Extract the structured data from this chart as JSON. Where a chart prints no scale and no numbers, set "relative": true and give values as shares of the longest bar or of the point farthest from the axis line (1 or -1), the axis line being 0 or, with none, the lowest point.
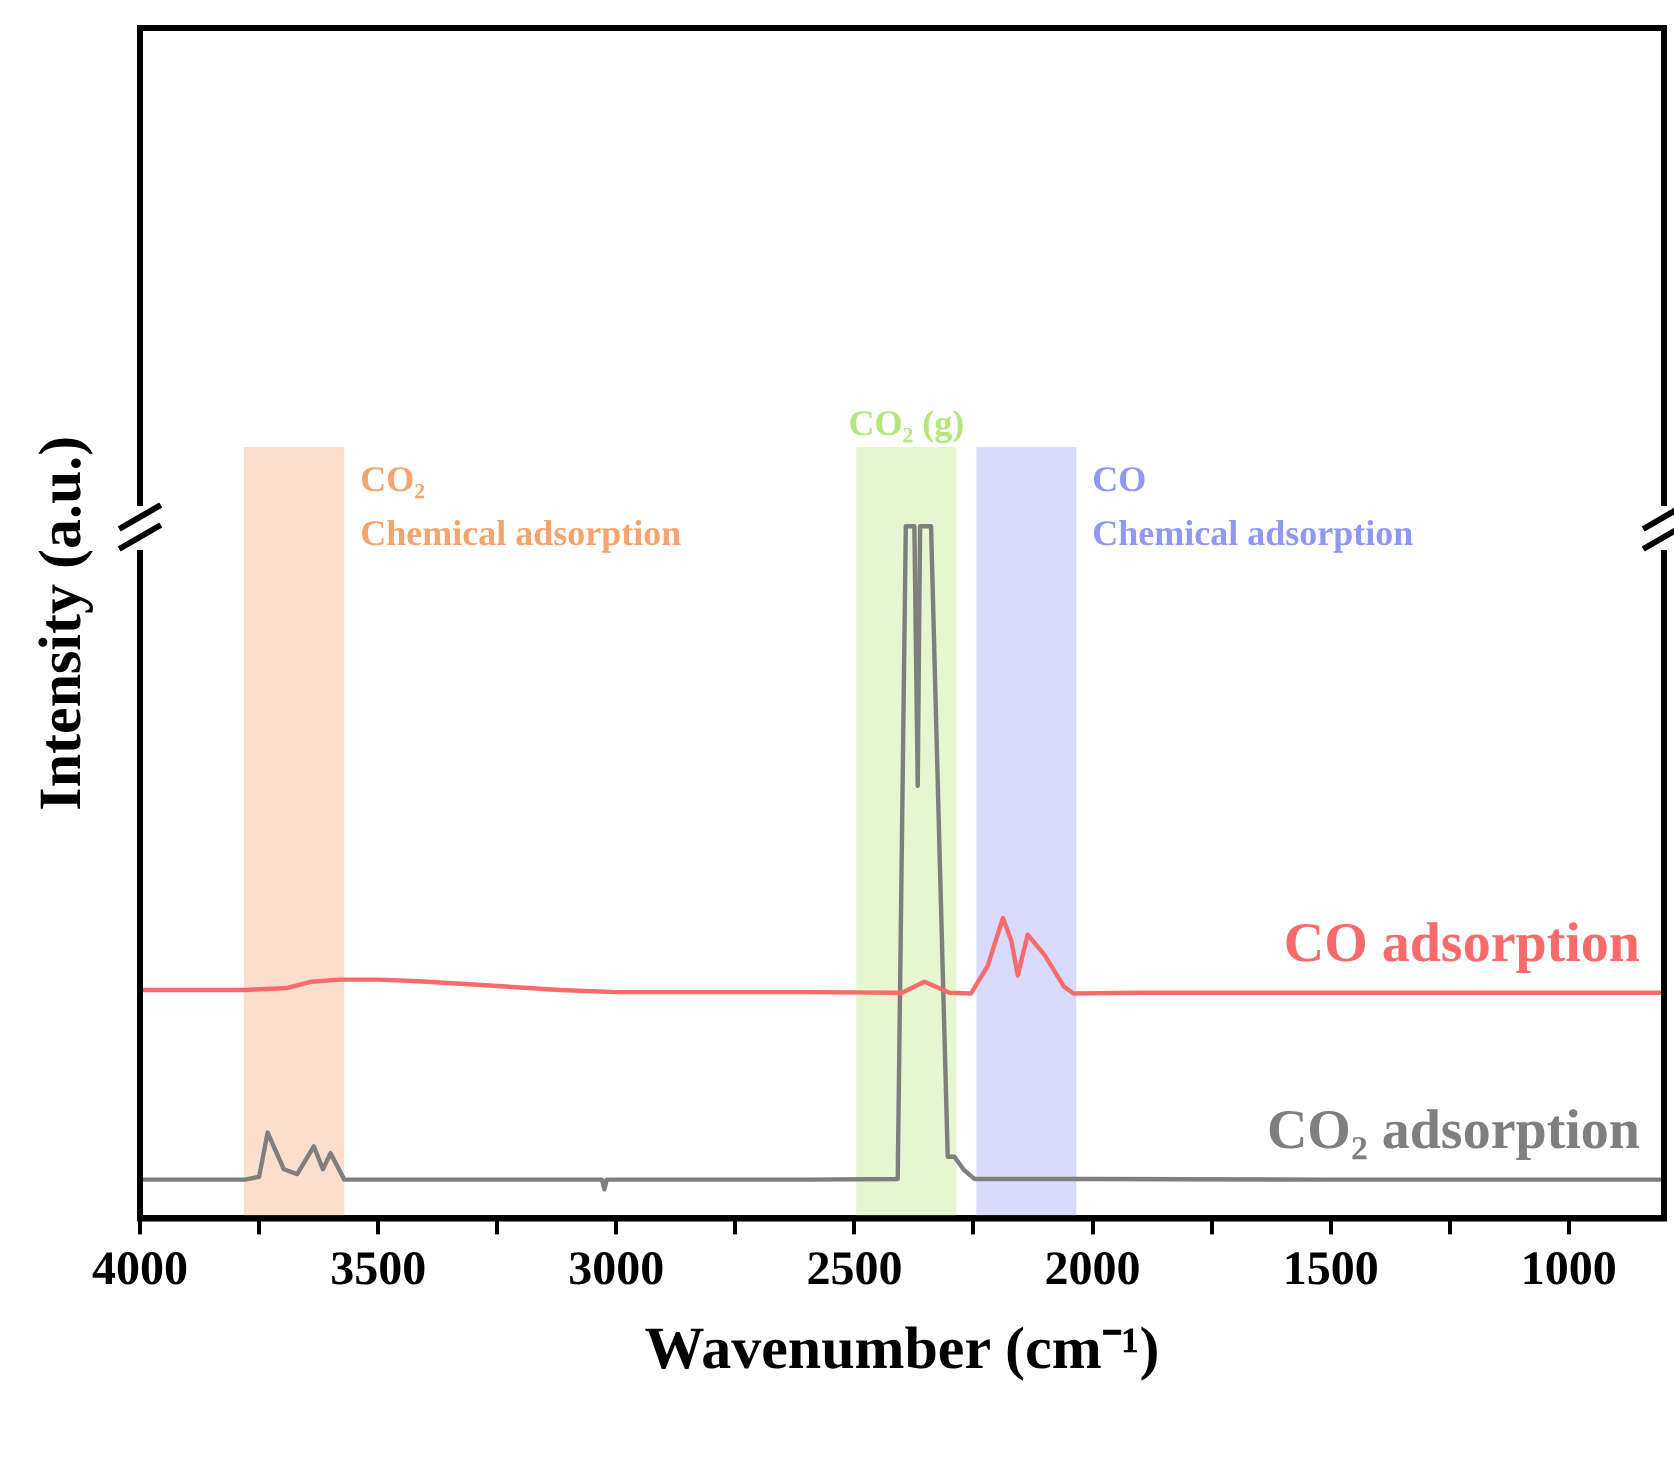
{
  "chart_data": {
    "type": "line",
    "relative": true,
    "xlabel": "Wavenumber (cm⁻¹)",
    "ylabel": "Intensity (a.u.)",
    "xlim": [
      4000,
      800
    ],
    "xticks": [
      4000,
      {
        "value": 3750,
        "label": null
      },
      3500,
      {
        "value": 3250,
        "label": null
      },
      3000,
      {
        "value": 2750,
        "label": null
      },
      2500,
      {
        "value": 2250,
        "label": null
      },
      2000,
      {
        "value": 1750,
        "label": null
      },
      1500,
      {
        "value": 1250,
        "label": null
      },
      1000
    ],
    "grid": false,
    "legend": false,
    "marker": "none",
    "line_style": "solid",
    "bands": [
      {
        "axis": "x",
        "from": 3782,
        "to": 3571,
        "label": "CO₂\nChemical adsorption",
        "color": "#f4a46c"
      },
      {
        "axis": "x",
        "from": 2496,
        "to": 2286,
        "label": "CO₂ (g)",
        "color": "#b5e67a"
      },
      {
        "axis": "x",
        "from": 2244,
        "to": 2034,
        "label": "CO\nChemical adsorption",
        "color": "#8f99f5"
      }
    ],
    "series": [
      {
        "name": "CO adsorption",
        "color": "#f96a6a",
        "x": [
          4000,
          3780,
          3690,
          3640,
          3580,
          3500,
          3425,
          3300,
          3118,
          3000,
          2800,
          2600,
          2400,
          2353,
          2300,
          2255,
          2220,
          2188,
          2170,
          2157,
          2136,
          2100,
          2060,
          2040,
          1900,
          1500,
          1000,
          800
        ],
        "values": [
          0.33,
          0.33,
          0.333,
          0.342,
          0.345,
          0.345,
          0.343,
          0.338,
          0.33,
          0.327,
          0.327,
          0.327,
          0.326,
          0.342,
          0.326,
          0.325,
          0.365,
          0.434,
          0.4,
          0.351,
          0.41,
          0.38,
          0.335,
          0.325,
          0.326,
          0.326,
          0.326,
          0.326
        ]
      },
      {
        "name": "CO₂ adsorption",
        "color": "#7f7f7f",
        "x": [
          4000,
          3780,
          3750,
          3732,
          3698,
          3670,
          3635,
          3616,
          3600,
          3571,
          3400,
          3030,
          3025,
          3020,
          2800,
          2600,
          2409,
          2392,
          2374,
          2367,
          2362,
          2339,
          2320,
          2304,
          2290,
          2270,
          2248,
          2000,
          1500,
          1000,
          800
        ],
        "values": [
          0.056,
          0.056,
          0.06,
          0.124,
          0.071,
          0.064,
          0.104,
          0.071,
          0.094,
          0.056,
          0.056,
          0.056,
          0.042,
          0.056,
          0.056,
          0.056,
          0.057,
          1.0,
          1.0,
          0.625,
          1.0,
          1.0,
          0.5,
          0.089,
          0.089,
          0.07,
          0.057,
          0.057,
          0.056,
          0.056,
          0.056
        ]
      }
    ]
  }
}
